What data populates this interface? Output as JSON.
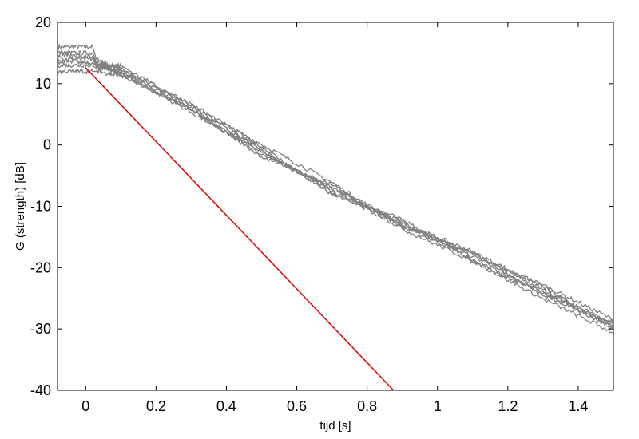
{
  "chart_data": {
    "type": "line",
    "title": "",
    "xlabel": "tijd  [s]",
    "ylabel": "G (strength)  [dB]",
    "xlim": [
      -0.08,
      1.5
    ],
    "ylim": [
      -40,
      20
    ],
    "xticks": [
      0,
      0.2,
      0.4,
      0.6,
      0.8,
      1,
      1.2,
      1.4
    ],
    "xtick_labels": [
      "0",
      "0.2",
      "0.4",
      "0.6",
      "0.8",
      "1",
      "1.2",
      "1.4"
    ],
    "yticks": [
      20,
      10,
      0,
      -10,
      -20,
      -30,
      -40
    ],
    "ytick_labels": [
      "20",
      "10",
      "0",
      "-10",
      "-20",
      "-30",
      "-40"
    ],
    "grid": false,
    "colors": {
      "decay_curves": "#808080",
      "reference_line": "#e00000",
      "axes": "#000000"
    },
    "series": [
      {
        "kind": "decay",
        "initial_level": 16,
        "points": [
          [
            -0.08,
            16
          ],
          [
            0.02,
            16
          ],
          [
            0.03,
            14
          ],
          [
            0.1,
            12.3
          ],
          [
            0.3,
            5.9
          ],
          [
            0.5,
            -1.6
          ],
          [
            0.7,
            -6.8
          ],
          [
            0.9,
            -13
          ],
          [
            1.1,
            -17.8
          ],
          [
            1.3,
            -23.6
          ],
          [
            1.5,
            -29.2
          ]
        ]
      },
      {
        "kind": "decay",
        "initial_level": 15,
        "points": [
          [
            -0.08,
            15
          ],
          [
            0.02,
            15
          ],
          [
            0.03,
            13.5
          ],
          [
            0.1,
            11.6
          ],
          [
            0.3,
            5.6
          ],
          [
            0.5,
            -0.7
          ],
          [
            0.7,
            -7.6
          ],
          [
            0.9,
            -12.5
          ],
          [
            1.1,
            -18.6
          ],
          [
            1.3,
            -24.2
          ],
          [
            1.5,
            -29.8
          ]
        ]
      },
      {
        "kind": "decay",
        "initial_level": 14,
        "points": [
          [
            -0.08,
            14
          ],
          [
            0.02,
            14
          ],
          [
            0.03,
            13
          ],
          [
            0.1,
            12.1
          ],
          [
            0.3,
            6.2
          ],
          [
            0.5,
            0.1
          ],
          [
            0.7,
            -6.1
          ],
          [
            0.9,
            -13.4
          ],
          [
            1.1,
            -18.2
          ],
          [
            1.3,
            -22.8
          ],
          [
            1.5,
            -28.5
          ]
        ]
      },
      {
        "kind": "decay",
        "initial_level": 13.5,
        "points": [
          [
            -0.08,
            13.5
          ],
          [
            0.02,
            13.5
          ],
          [
            0.03,
            12.8
          ],
          [
            0.1,
            11.8
          ],
          [
            0.3,
            5.3
          ],
          [
            0.5,
            -1.2
          ],
          [
            0.7,
            -7.2
          ],
          [
            0.9,
            -12.8
          ],
          [
            1.1,
            -17.4
          ],
          [
            1.3,
            -23.1
          ],
          [
            1.5,
            -30.2
          ]
        ]
      },
      {
        "kind": "decay",
        "initial_level": 13,
        "points": [
          [
            -0.08,
            13
          ],
          [
            0.02,
            13
          ],
          [
            0.03,
            12.5
          ],
          [
            0.1,
            12.5
          ],
          [
            0.3,
            6.7
          ],
          [
            0.5,
            -0.3
          ],
          [
            0.7,
            -8.1
          ],
          [
            0.9,
            -12.1
          ],
          [
            1.1,
            -19.1
          ],
          [
            1.3,
            -23.9
          ],
          [
            1.5,
            -29.5
          ]
        ]
      },
      {
        "kind": "decay",
        "initial_level": 12,
        "points": [
          [
            -0.08,
            12
          ],
          [
            0.02,
            12
          ],
          [
            0.03,
            12
          ],
          [
            0.1,
            11.3
          ],
          [
            0.3,
            5.8
          ],
          [
            0.5,
            -1.9
          ],
          [
            0.7,
            -6.5
          ],
          [
            0.9,
            -13.7
          ],
          [
            1.1,
            -18.9
          ],
          [
            1.3,
            -25.1
          ],
          [
            1.5,
            -30.6
          ]
        ]
      },
      {
        "kind": "decay",
        "initial_level": 14.5,
        "points": [
          [
            -0.08,
            14.5
          ],
          [
            0.02,
            14.5
          ],
          [
            0.03,
            13.2
          ],
          [
            0.1,
            12.9
          ],
          [
            0.3,
            6.4
          ],
          [
            0.5,
            -0.8
          ],
          [
            0.7,
            -7.9
          ],
          [
            0.9,
            -13.2
          ],
          [
            1.1,
            -17.6
          ],
          [
            1.3,
            -24.6
          ],
          [
            1.5,
            -28.9
          ]
        ]
      },
      {
        "kind": "reference",
        "points": [
          [
            0.0,
            12.6
          ],
          [
            0.875,
            -40
          ]
        ]
      }
    ]
  }
}
